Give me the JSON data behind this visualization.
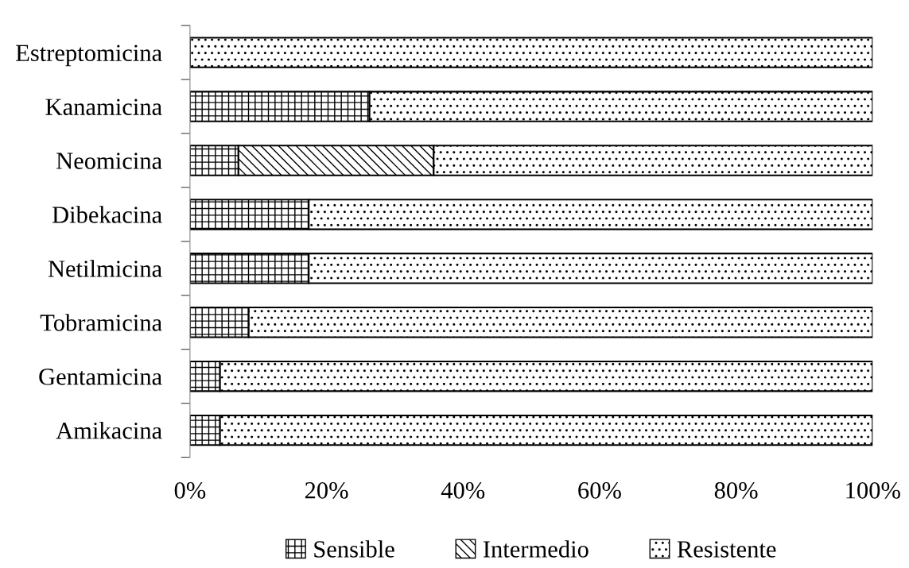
{
  "chart_data": {
    "type": "bar",
    "orientation": "horizontal",
    "stacked": true,
    "categories": [
      "Estreptomicina",
      "Kanamicina",
      "Neomicina",
      "Dibekacina",
      "Netilmicina",
      "Tobramicina",
      "Gentamicina",
      "Amikacina"
    ],
    "series": [
      {
        "name": "Sensible",
        "values": [
          null,
          26.3,
          7.1,
          17.4,
          17.4,
          8.6,
          4.4,
          4.4
        ]
      },
      {
        "name": "Intermedio",
        "values": [
          null,
          null,
          28.6,
          null,
          null,
          null,
          null,
          null
        ]
      },
      {
        "name": "Resistente",
        "values": [
          100,
          73.7,
          64.3,
          82.6,
          82.6,
          91.4,
          95.6,
          95.6
        ]
      }
    ],
    "xlim": [
      0,
      100
    ],
    "xticks": [
      {
        "value": 0,
        "label": "0%"
      },
      {
        "value": 20,
        "label": "20%"
      },
      {
        "value": 40,
        "label": "40%"
      },
      {
        "value": 60,
        "label": "60%"
      },
      {
        "value": 80,
        "label": "80%"
      },
      {
        "value": 100,
        "label": "100%"
      }
    ],
    "legend": "bottom",
    "grid": false
  }
}
